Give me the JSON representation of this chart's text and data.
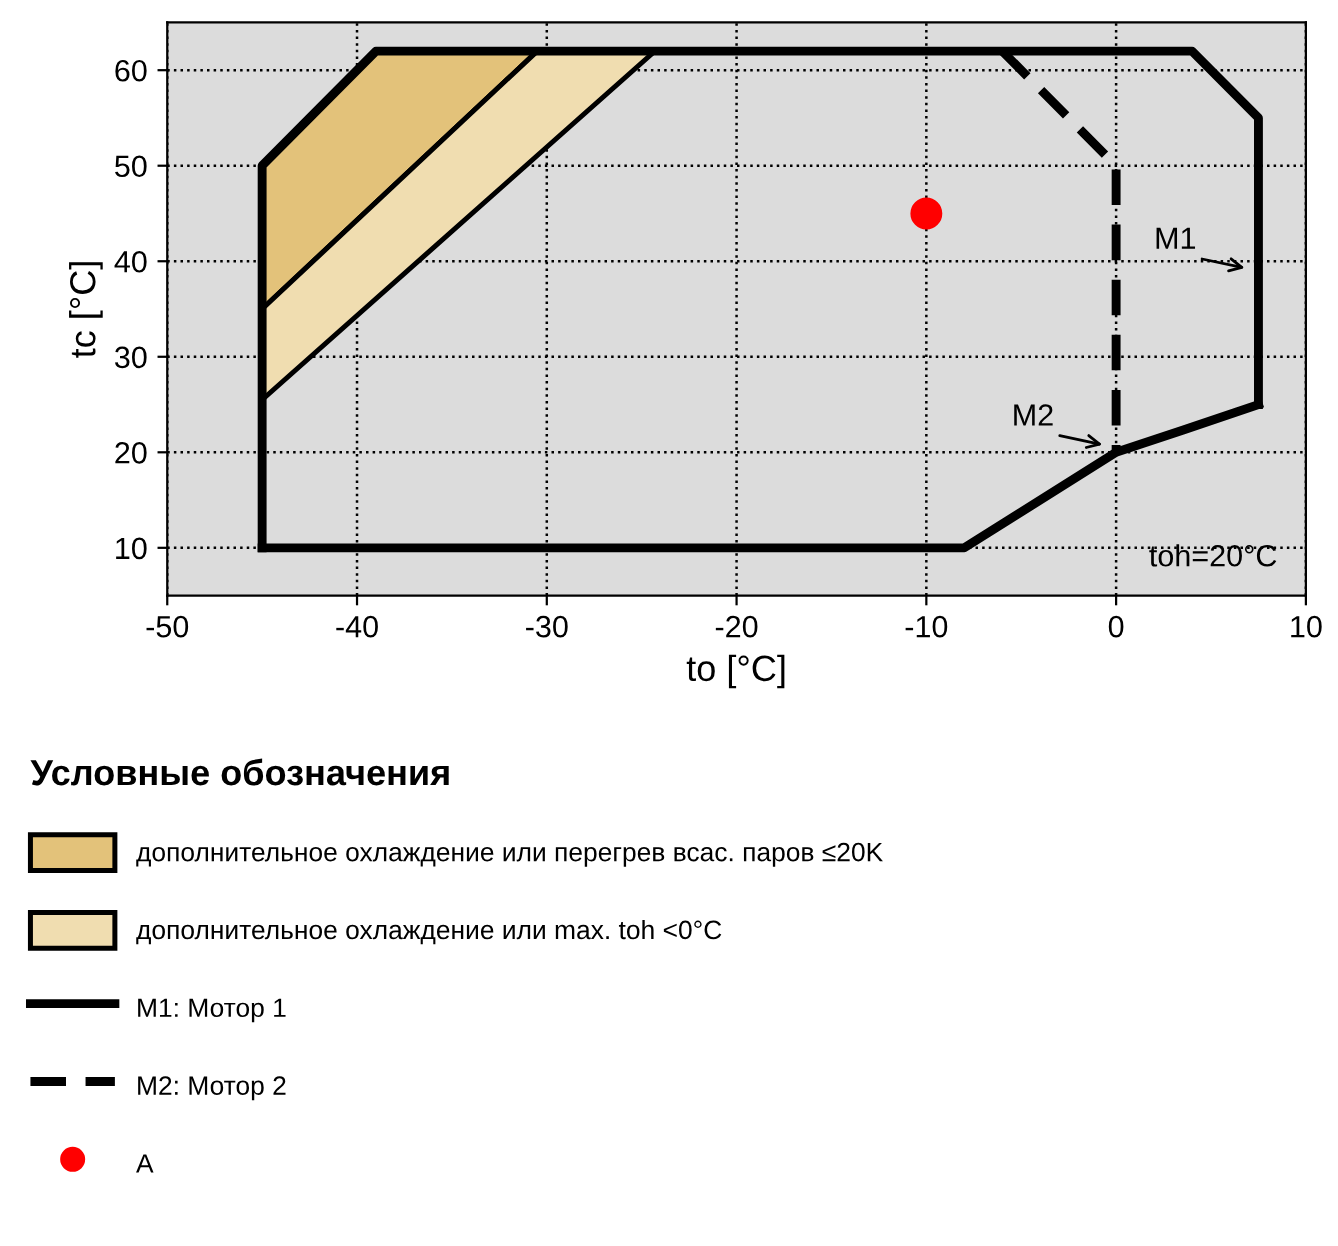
{
  "chart_data": {
    "type": "line",
    "xlabel": "to [°C]",
    "ylabel": "tc [°C]",
    "legend_title": "Условные обозначения",
    "xlim": [
      -50,
      10
    ],
    "xticks": [
      -50,
      -40,
      -30,
      -20,
      -10,
      0,
      10
    ],
    "ylim": [
      5,
      65
    ],
    "yticks": [
      10,
      20,
      30,
      40,
      50,
      60
    ],
    "grid": true,
    "legend": "bottom",
    "series": [
      {
        "type": "area",
        "name": "дополнительное охлаждение или перегрев всас. паров ≤20K",
        "color": "#e3c27a",
        "x": [
          -45,
          -39,
          -30.5,
          -45
        ],
        "values": [
          50,
          62,
          62,
          35
        ]
      },
      {
        "type": "area",
        "name": "дополнительное охлаждение или max. toh <0°C",
        "color": "#f0ddb0",
        "x": [
          -45,
          -30.5,
          -24.3,
          -45
        ],
        "values": [
          35,
          62,
          62,
          25.5
        ]
      },
      {
        "type": "line",
        "name": "M1: Мотор 1",
        "color": "#000000",
        "line_style": "solid",
        "x": [
          -45,
          -45,
          -39,
          4,
          7.5,
          7.5
        ],
        "values": [
          10,
          50,
          62,
          62,
          55,
          25
        ]
      },
      {
        "color": "#000000",
        "line_style": "solid",
        "x": [
          7.5,
          3.5,
          0,
          -8,
          -45
        ],
        "values": [
          25,
          22.3,
          20,
          10,
          10
        ]
      },
      {
        "type": "line",
        "name": "M2: Мотор 2",
        "color": "#000000",
        "line_style": "dashed",
        "x": [
          -6,
          0,
          0
        ],
        "values": [
          62,
          50,
          20
        ]
      },
      {
        "type": "scatter",
        "name": "A",
        "color": "#ff0000",
        "marker": "circle",
        "x": [
          -10
        ],
        "values": [
          45
        ]
      }
    ],
    "annotations": [
      {
        "text": "M1",
        "x": 7.5,
        "y": 39
      },
      {
        "text": "M2",
        "x": 0,
        "y": 20.5
      },
      "toh=20°C"
    ]
  }
}
